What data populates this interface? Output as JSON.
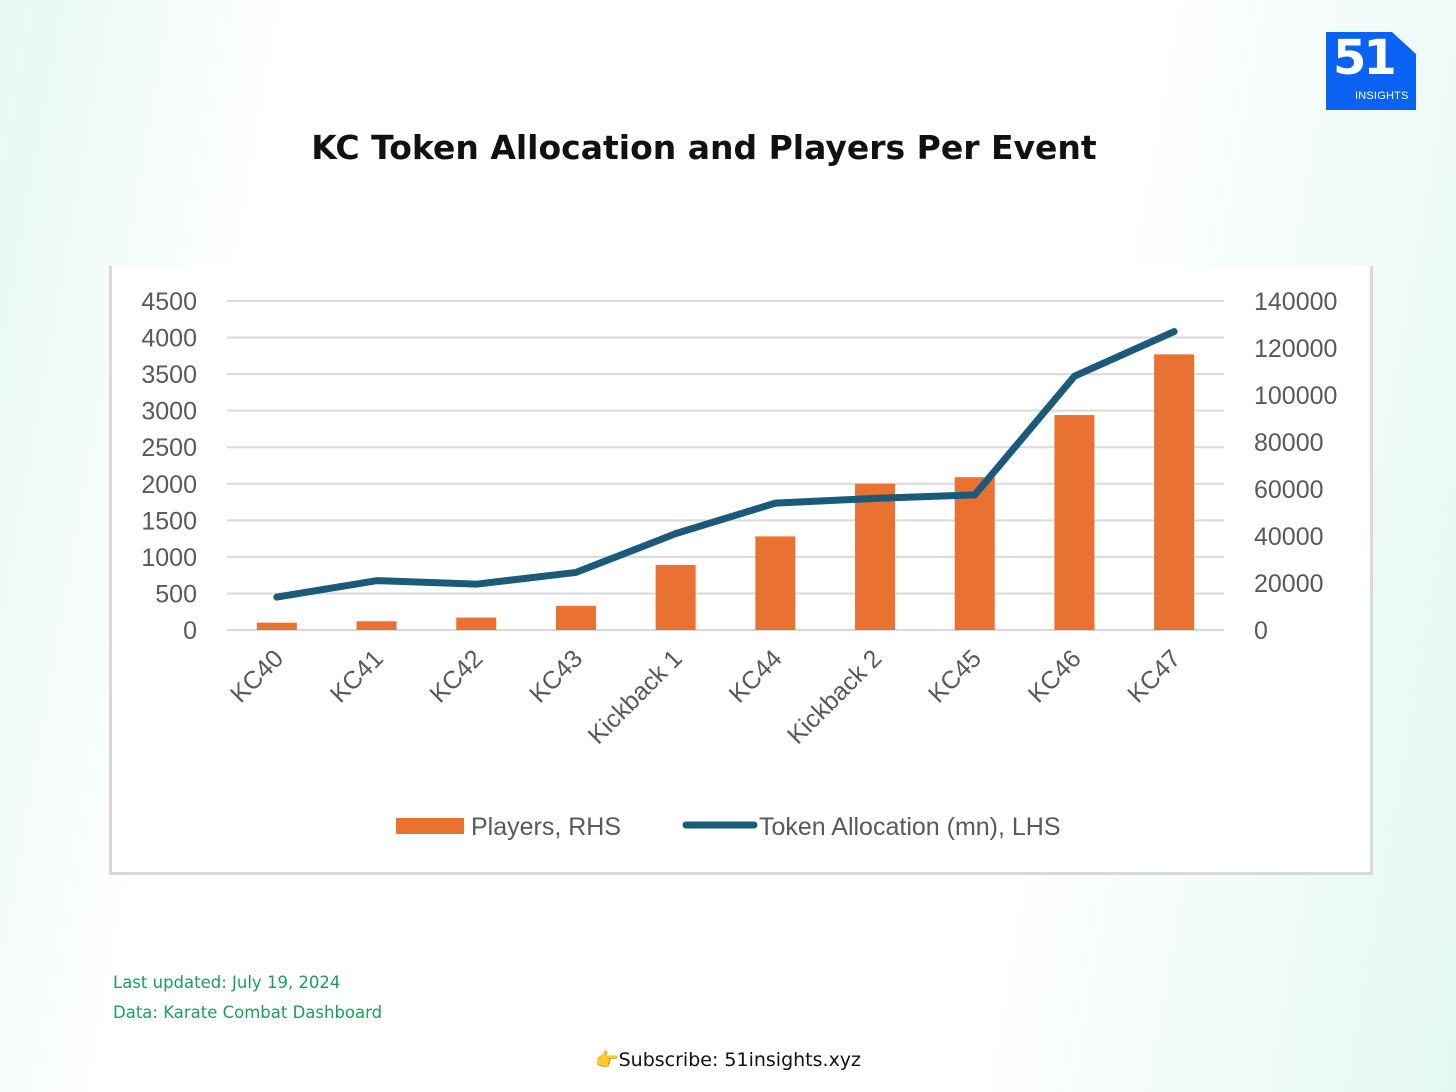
{
  "logo": {
    "number": "51",
    "text": "INSIGHTS",
    "color": "#0b63f5"
  },
  "title": "KC Token Allocation and Players Per Event",
  "footer": {
    "last_updated": "Last updated: July 19, 2024",
    "data_source": "Data: Karate Combat Dashboard",
    "subscribe": "👉Subscribe: 51insights.xyz"
  },
  "chart_data": {
    "type": "bar",
    "categories": [
      "KC40",
      "KC41",
      "KC42",
      "KC43",
      "Kickback 1",
      "KC44",
      "Kickback 2",
      "KC45",
      "KC46",
      "KC47"
    ],
    "series": [
      {
        "name": "Players, RHS",
        "type": "bar",
        "axis": "left",
        "color": "#e97132",
        "values": [
          100,
          120,
          170,
          330,
          890,
          1280,
          2000,
          2090,
          2940,
          3770
        ]
      },
      {
        "name": "Token Allocation (mn), LHS",
        "type": "line",
        "axis": "right",
        "color": "#1b5a7a",
        "values": [
          14000,
          21000,
          19500,
          24500,
          41000,
          54000,
          56000,
          57500,
          108000,
          127000
        ]
      }
    ],
    "y_left": {
      "ylim": [
        0,
        4500
      ],
      "ticks": [
        "4500",
        "4000",
        "3500",
        "3000",
        "2500",
        "2000",
        "1500",
        "1000",
        "500",
        "0"
      ]
    },
    "y_right": {
      "ylim": [
        0,
        140000
      ],
      "ticks": [
        "140000",
        "120000",
        "100000",
        "80000",
        "60000",
        "40000",
        "20000",
        "0"
      ]
    },
    "grid": true,
    "legend": "bottom"
  }
}
